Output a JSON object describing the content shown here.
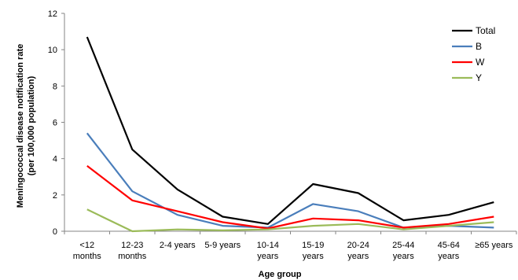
{
  "chart_data": {
    "type": "line",
    "xlabel": "Age group",
    "ylabel": [
      "Meningococcal disease notification rate",
      "(per 100,000 population)"
    ],
    "ylim": [
      0,
      12
    ],
    "yticks": [
      0,
      2,
      4,
      6,
      8,
      10,
      12
    ],
    "grid": false,
    "legend_position": "top-right",
    "categories": [
      [
        "<12",
        "months"
      ],
      [
        "12-23",
        "months"
      ],
      [
        "2-4 years"
      ],
      [
        "5-9 years"
      ],
      [
        "10-14",
        "years"
      ],
      [
        "15-19",
        "years"
      ],
      [
        "20-24",
        "years"
      ],
      [
        "25-44",
        "years"
      ],
      [
        "45-64",
        "years"
      ],
      [
        "≥65 years"
      ]
    ],
    "series": [
      {
        "name": "Total",
        "color": "#000000",
        "values": [
          10.7,
          4.5,
          2.3,
          0.8,
          0.4,
          2.6,
          2.1,
          0.6,
          0.9,
          1.6
        ]
      },
      {
        "name": "B",
        "color": "#4a7ebb",
        "values": [
          5.4,
          2.2,
          0.9,
          0.3,
          0.2,
          1.5,
          1.1,
          0.2,
          0.3,
          0.2
        ]
      },
      {
        "name": "W",
        "color": "#ff0000",
        "values": [
          3.6,
          1.7,
          1.1,
          0.5,
          0.15,
          0.7,
          0.6,
          0.2,
          0.4,
          0.8
        ]
      },
      {
        "name": "Y",
        "color": "#9bbb59",
        "values": [
          1.2,
          0.0,
          0.1,
          0.05,
          0.1,
          0.3,
          0.4,
          0.1,
          0.3,
          0.5
        ]
      }
    ]
  }
}
